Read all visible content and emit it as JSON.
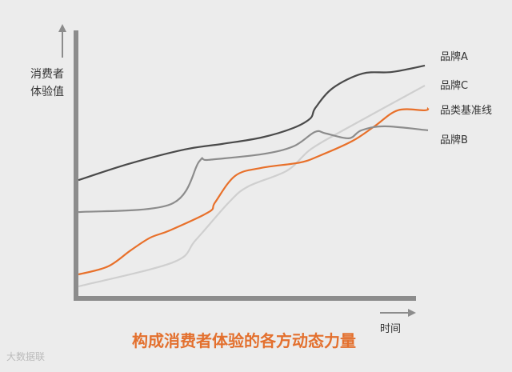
{
  "chart_data": {
    "type": "line",
    "title": "构成消费者体验的各方动态力量",
    "xlabel": "时间",
    "ylabel": [
      "消费者",
      "体验值"
    ],
    "xlim": [
      0,
      100
    ],
    "ylim": [
      0,
      100
    ],
    "grid": false,
    "legend": "right, labels at line ends",
    "series": [
      {
        "name": "品牌A",
        "color": "#4a4a4a",
        "x": [
          0.7,
          15,
          30.9,
          41.6,
          52.7,
          61.8,
          66.6,
          68,
          73,
          81.4,
          89.8,
          99.1
        ],
        "y": [
          44.4,
          50.5,
          55.9,
          58,
          60.4,
          64,
          67.6,
          71.5,
          79,
          84.4,
          85,
          87.4
        ]
      },
      {
        "name": "品牌C",
        "color": "#cfcfcf",
        "x": [
          0.7,
          27.5,
          34,
          43.4,
          48.9,
          60,
          66.6,
          75.9,
          99.1
        ],
        "y": [
          4.5,
          13.5,
          21.9,
          36,
          42,
          48,
          55.9,
          63.1,
          79.9
        ]
      },
      {
        "name": "品类基准线",
        "color": "#e8702a",
        "x": [
          0.7,
          9.1,
          15.5,
          21.1,
          26.6,
          37.7,
          39.5,
          45.2,
          52.7,
          63.6,
          69.1,
          78.4,
          84.8,
          91.4,
          99.1,
          100
        ],
        "y": [
          9,
          12,
          18,
          22.8,
          25.5,
          32.4,
          36,
          46,
          49,
          51,
          53.5,
          59,
          64.6,
          70.6,
          70.6,
          71.5
        ]
      },
      {
        "name": "品牌B",
        "color": "#8c8c8c",
        "x": [
          0.7,
          27,
          35,
          37.7,
          52.7,
          61.8,
          67.9,
          71,
          77.5,
          81.1,
          87.7,
          100
        ],
        "y": [
          32.4,
          35.4,
          51.4,
          52,
          54.1,
          57.1,
          62.5,
          61.9,
          60.1,
          63.1,
          64.6,
          63.1
        ]
      }
    ]
  },
  "watermark": "大数据联"
}
